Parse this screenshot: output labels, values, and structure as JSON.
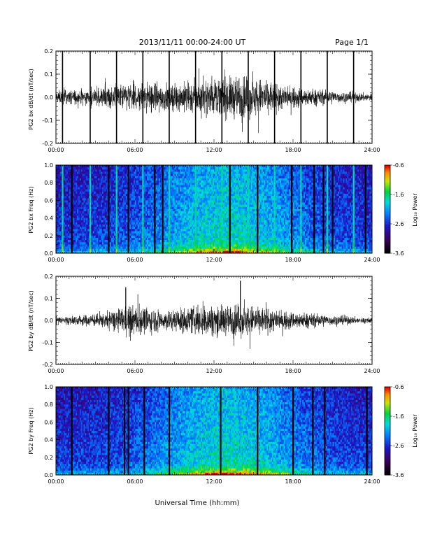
{
  "header": {
    "title": "2013/11/11   00:00-24:00 UT",
    "page": "Page 1/1"
  },
  "xaxis": {
    "label": "Universal Time (hh:mm)",
    "tick_labels": [
      "00:00",
      "06:00",
      "12:00",
      "18:00",
      "24:00"
    ]
  },
  "panels": {
    "bx_wave": {
      "ylabel": "PG2 bx dB/dt (nT/sec)",
      "yticks": [
        "0.2",
        "0.1",
        "0.0",
        "-0.1",
        "-0.2"
      ]
    },
    "bx_spec": {
      "ylabel": "PG2 bx Freq (Hz)",
      "yticks": [
        "1.0",
        "0.8",
        "0.6",
        "0.4",
        "0.2",
        "0.0"
      ]
    },
    "by_wave": {
      "ylabel": "PG2 by dB/dt (nT/sec)",
      "yticks": [
        "0.2",
        "0.1",
        "0.0",
        "-0.1",
        "-0.2"
      ]
    },
    "by_spec": {
      "ylabel": "PG2 by Freq (Hz)",
      "yticks": [
        "1.0",
        "0.8",
        "0.6",
        "0.4",
        "0.2",
        "0.0"
      ]
    }
  },
  "colorbar": {
    "label": "Log₁₀ Power",
    "tick_labels": [
      "-0.6",
      "-1.6",
      "-2.6",
      "-3.6"
    ]
  },
  "chart_data": [
    {
      "type": "line",
      "id": "bx_wave",
      "ylabel": "PG2 bx dB/dt (nT/sec)",
      "xlabel": "Universal Time (hh:mm)",
      "xlim": [
        0,
        24
      ],
      "ylim": [
        -0.2,
        0.2
      ],
      "spikes_hours": [
        0.5,
        2.6,
        4.6,
        6.6,
        8.6,
        10.6,
        12.6,
        14.6,
        16.6,
        18.6,
        20.6,
        22.6
      ],
      "envelope": {
        "hours": [
          0,
          2,
          3,
          4,
          5,
          6,
          7,
          8,
          9,
          10,
          11,
          12,
          13,
          14,
          15,
          16,
          17,
          18,
          19,
          20,
          21,
          22,
          23,
          24
        ],
        "amplitude": [
          0.03,
          0.035,
          0.04,
          0.05,
          0.06,
          0.07,
          0.07,
          0.065,
          0.06,
          0.07,
          0.08,
          0.08,
          0.09,
          0.1,
          0.09,
          0.08,
          0.06,
          0.05,
          0.04,
          0.035,
          0.03,
          0.025,
          0.02,
          0.02
        ]
      }
    },
    {
      "type": "heatmap",
      "id": "bx_spec",
      "ylabel": "PG2 bx Freq (Hz)",
      "xlim": [
        0,
        24
      ],
      "ylim": [
        0,
        1.0
      ],
      "colorbar_range": [
        -3.6,
        -0.6
      ],
      "bright_lines_hours": [
        0.5,
        2.6,
        4.6,
        6.6,
        8.6,
        10.6,
        12.6,
        14.6,
        16.6,
        18.6,
        20.6,
        22.6
      ],
      "dark_lines_hours": [
        1.2,
        4.0,
        5.5,
        7.5,
        8.1,
        13.2,
        15.3,
        17.9,
        19.6,
        20.3,
        21.0,
        23.5
      ]
    },
    {
      "type": "line",
      "id": "by_wave",
      "ylabel": "PG2 by dB/dt (nT/sec)",
      "xlabel": "Universal Time (hh:mm)",
      "xlim": [
        0,
        24
      ],
      "ylim": [
        -0.2,
        0.2
      ],
      "notable_peaks": [
        {
          "hour": 5.3,
          "value": 0.15
        },
        {
          "hour": 14.0,
          "value": 0.18
        }
      ],
      "envelope": {
        "hours": [
          0,
          2,
          3,
          4,
          5,
          6,
          7,
          8,
          9,
          10,
          11,
          12,
          13,
          14,
          15,
          16,
          17,
          18,
          19,
          20,
          21,
          22,
          23,
          24
        ],
        "amplitude": [
          0.02,
          0.025,
          0.03,
          0.04,
          0.06,
          0.07,
          0.06,
          0.05,
          0.05,
          0.06,
          0.07,
          0.07,
          0.07,
          0.08,
          0.07,
          0.06,
          0.05,
          0.04,
          0.035,
          0.03,
          0.025,
          0.02,
          0.015,
          0.015
        ]
      }
    },
    {
      "type": "heatmap",
      "id": "by_spec",
      "ylabel": "PG2 by Freq (Hz)",
      "xlim": [
        0,
        24
      ],
      "ylim": [
        0,
        1.0
      ],
      "colorbar_range": [
        -3.6,
        -0.6
      ],
      "dark_lines_hours": [
        1.2,
        4.0,
        5.2,
        5.5,
        6.7,
        8.6,
        12.5,
        15.3,
        18.0,
        19.5,
        20.4,
        23.6
      ]
    }
  ]
}
